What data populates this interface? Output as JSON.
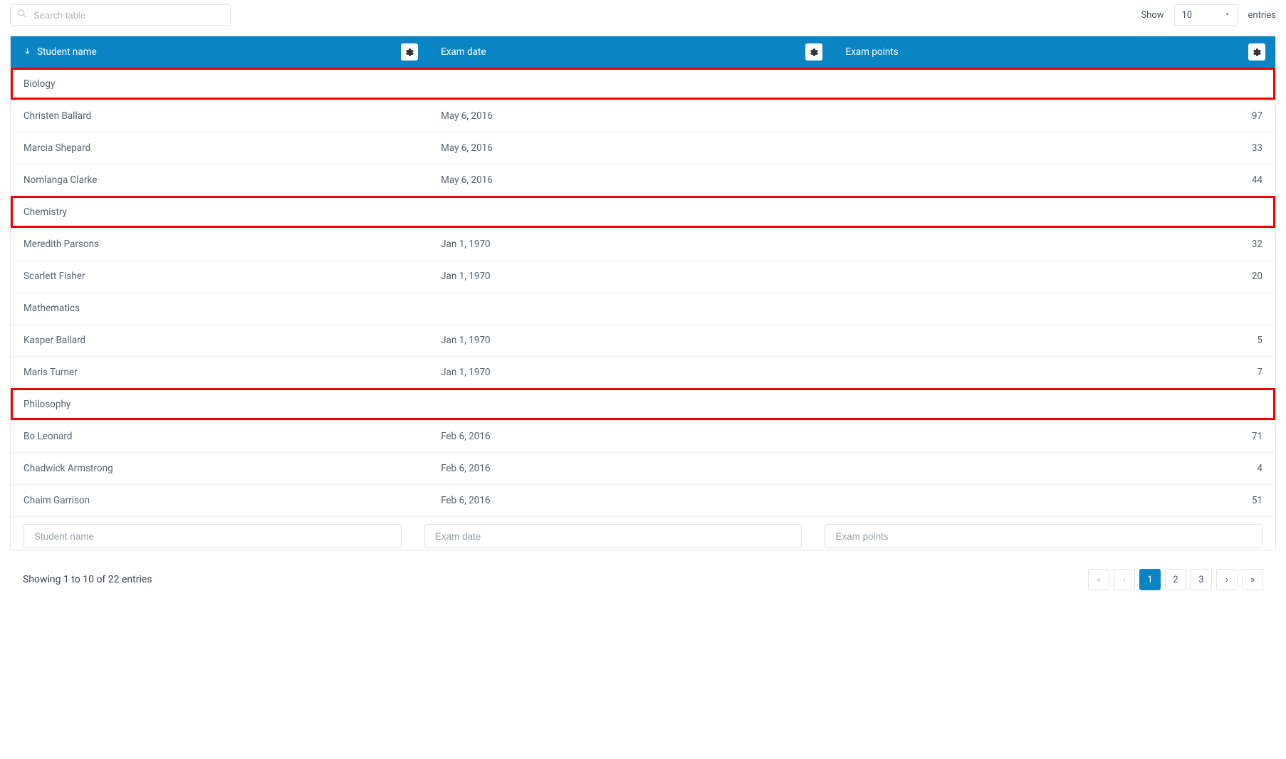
{
  "search": {
    "placeholder": "Search table"
  },
  "entries": {
    "show_label": "Show",
    "entries_label": "entries",
    "selected": "10"
  },
  "columns": {
    "name": {
      "label": "Student name",
      "filter_placeholder": "Student name",
      "sorted": "asc"
    },
    "date": {
      "label": "Exam date",
      "filter_placeholder": "Exam date"
    },
    "points": {
      "label": "Exam points",
      "filter_placeholder": "Exam points"
    }
  },
  "colors": {
    "header_bg": "#0b84c4",
    "highlight_border": "#f10202",
    "row_border": "#eceef0",
    "text": "#5a6470"
  },
  "rows": [
    {
      "type": "group",
      "label": "Biology",
      "highlight": true
    },
    {
      "type": "data",
      "name": "Christen Ballard",
      "date": "May 6, 2016",
      "points": "97"
    },
    {
      "type": "data",
      "name": "Marcia Shepard",
      "date": "May 6, 2016",
      "points": "33"
    },
    {
      "type": "data",
      "name": "Nomlanga Clarke",
      "date": "May 6, 2016",
      "points": "44"
    },
    {
      "type": "group",
      "label": "Chemistry",
      "highlight": true
    },
    {
      "type": "data",
      "name": "Meredith Parsons",
      "date": "Jan 1, 1970",
      "points": "32"
    },
    {
      "type": "data",
      "name": "Scarlett Fisher",
      "date": "Jan 1, 1970",
      "points": "20"
    },
    {
      "type": "group",
      "label": "Mathematics",
      "highlight": false
    },
    {
      "type": "data",
      "name": "Kasper Ballard",
      "date": "Jan 1, 1970",
      "points": "5"
    },
    {
      "type": "data",
      "name": "Maris Turner",
      "date": "Jan 1, 1970",
      "points": "7"
    },
    {
      "type": "group",
      "label": "Philosophy",
      "highlight": true
    },
    {
      "type": "data",
      "name": "Bo Leonard",
      "date": "Feb 6, 2016",
      "points": "71"
    },
    {
      "type": "data",
      "name": "Chadwick Armstrong",
      "date": "Feb 6, 2016",
      "points": "4"
    },
    {
      "type": "data",
      "name": "Chaim Garrison",
      "date": "Feb 6, 2016",
      "points": "51"
    }
  ],
  "pagination": {
    "summary": "Showing 1 to 10 of 22 entries",
    "pages": [
      "1",
      "2",
      "3"
    ],
    "active_index": 0
  }
}
